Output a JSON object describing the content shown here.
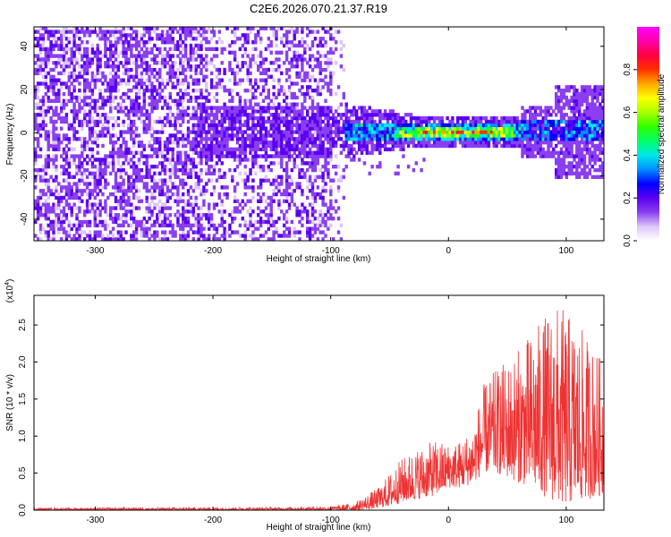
{
  "chart_data": [
    {
      "type": "heatmap",
      "title": "C2E6.2026.070.21.37.R19",
      "xlabel": "Height of straight line (km)",
      "ylabel": "Frequency (Hz)",
      "xlim": [
        -352,
        132
      ],
      "ylim": [
        -50,
        49
      ],
      "xticks": [
        -300,
        -200,
        -100,
        0,
        100
      ],
      "yticks": [
        -40,
        -20,
        0,
        20,
        40
      ],
      "colorbar": {
        "label": "Normalized spectral amplitude",
        "range": [
          0.0,
          1.0
        ],
        "ticks": [
          "0.0",
          "0.2",
          "0.4",
          "0.6",
          "0.8"
        ],
        "colors": [
          "#ffffff",
          "#dcc6f7",
          "#8a3ff0",
          "#5a00f0",
          "#0000ff",
          "#0090ff",
          "#00e8e8",
          "#00ff66",
          "#30ff00",
          "#a8ff00",
          "#ffff00",
          "#ffaa00",
          "#ff3000",
          "#ff0040",
          "#ff00aa",
          "#ff00ff"
        ]
      },
      "features": {
        "spectral_line_frequency_hz": 0,
        "broadband_noise_region_km": [
          -352,
          -90
        ],
        "strong_signal_region_km": [
          -45,
          60
        ],
        "peak_amplitude_region_km": [
          -30,
          40
        ]
      }
    },
    {
      "type": "line",
      "xlabel": "Height of straight line (km)",
      "ylabel": "SNR (10 * v/v)",
      "y_multiplier": "(x10",
      "y_multiplier_exp": "4",
      "xlim": [
        -352,
        132
      ],
      "ylim": [
        0,
        2.9
      ],
      "xticks": [
        -300,
        -200,
        -100,
        0,
        100
      ],
      "yticks": [
        "0.0",
        "0.5",
        "1.0",
        "1.5",
        "2.0",
        "2.5"
      ],
      "series": [
        {
          "name": "SNR",
          "color": "#ee3333",
          "envelope": [
            {
              "x": -352,
              "low": 0.0,
              "high": 0.03
            },
            {
              "x": -150,
              "low": 0.0,
              "high": 0.04
            },
            {
              "x": -100,
              "low": 0.0,
              "high": 0.05
            },
            {
              "x": -80,
              "low": 0.0,
              "high": 0.1
            },
            {
              "x": -60,
              "low": 0.02,
              "high": 0.3
            },
            {
              "x": -50,
              "low": 0.05,
              "high": 0.5
            },
            {
              "x": -40,
              "low": 0.1,
              "high": 0.7
            },
            {
              "x": -25,
              "low": 0.15,
              "high": 0.85
            },
            {
              "x": -10,
              "low": 0.2,
              "high": 0.95
            },
            {
              "x": 0,
              "low": 0.3,
              "high": 0.9
            },
            {
              "x": 10,
              "low": 0.3,
              "high": 0.95
            },
            {
              "x": 20,
              "low": 0.35,
              "high": 1.1
            },
            {
              "x": 30,
              "low": 0.5,
              "high": 1.7
            },
            {
              "x": 40,
              "low": 0.5,
              "high": 1.9
            },
            {
              "x": 55,
              "low": 0.4,
              "high": 2.1
            },
            {
              "x": 70,
              "low": 0.3,
              "high": 2.4
            },
            {
              "x": 80,
              "low": 0.2,
              "high": 2.6
            },
            {
              "x": 90,
              "low": 0.1,
              "high": 2.8
            },
            {
              "x": 100,
              "low": 0.05,
              "high": 2.7
            },
            {
              "x": 110,
              "low": 0.1,
              "high": 2.5
            },
            {
              "x": 120,
              "low": 0.15,
              "high": 2.3
            },
            {
              "x": 132,
              "low": 0.2,
              "high": 2.0
            }
          ]
        }
      ]
    }
  ]
}
